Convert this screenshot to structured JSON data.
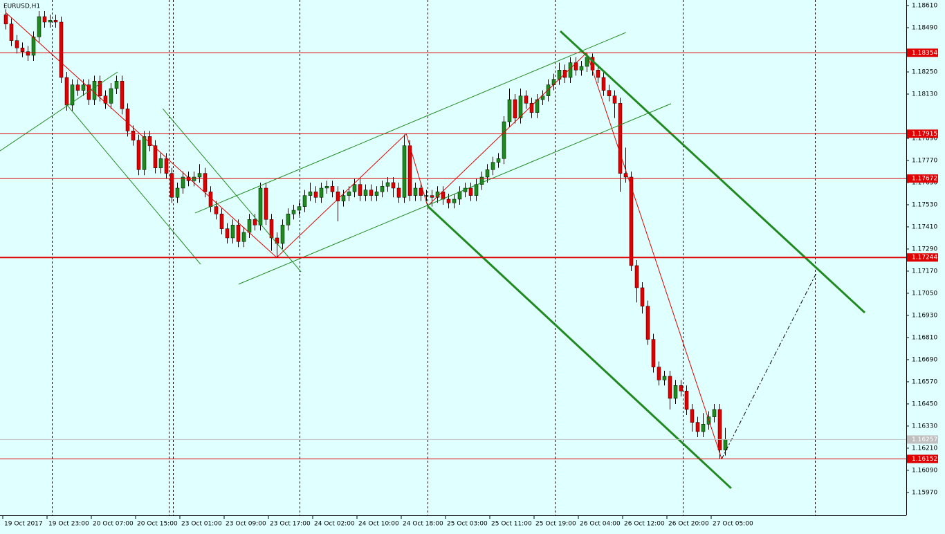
{
  "chart_data": {
    "type": "candlestick",
    "title": "EURUSD,H1",
    "xlim": [
      -1,
      162.75
    ],
    "ylim": [
      1.15846,
      1.1864
    ],
    "yticks": [
      {
        "value": 1.1861,
        "label": "1.18610"
      },
      {
        "value": 1.1849,
        "label": "1.18490"
      },
      {
        "value": 1.1825,
        "label": "1.18250"
      },
      {
        "value": 1.1813,
        "label": "1.18130"
      },
      {
        "value": 1.1789,
        "label": "1.17890"
      },
      {
        "value": 1.1777,
        "label": "1.17770"
      },
      {
        "value": 1.1765,
        "label": "1.17650"
      },
      {
        "value": 1.1753,
        "label": "1.17530"
      },
      {
        "value": 1.1741,
        "label": "1.17410"
      },
      {
        "value": 1.1729,
        "label": "1.17290"
      },
      {
        "value": 1.1717,
        "label": "1.17170"
      },
      {
        "value": 1.1705,
        "label": "1.17050"
      },
      {
        "value": 1.1693,
        "label": "1.16930"
      },
      {
        "value": 1.1681,
        "label": "1.16810"
      },
      {
        "value": 1.1669,
        "label": "1.16690"
      },
      {
        "value": 1.1657,
        "label": "1.16570"
      },
      {
        "value": 1.1645,
        "label": "1.16450"
      },
      {
        "value": 1.1633,
        "label": "1.16330"
      },
      {
        "value": 1.1621,
        "label": "1.16210"
      },
      {
        "value": 1.1609,
        "label": "1.16090"
      },
      {
        "value": 1.1597,
        "label": "1.15970"
      }
    ],
    "xticks": [
      {
        "value": 0,
        "label": "19 Oct 2017"
      },
      {
        "value": 8,
        "label": "19 Oct 23:00"
      },
      {
        "value": 16,
        "label": "20 Oct 07:00"
      },
      {
        "value": 24,
        "label": "20 Oct 15:00"
      },
      {
        "value": 32,
        "label": "23 Oct 01:00"
      },
      {
        "value": 40,
        "label": "23 Oct 09:00"
      },
      {
        "value": 48,
        "label": "23 Oct 17:00"
      },
      {
        "value": 56,
        "label": "24 Oct 02:00"
      },
      {
        "value": 64,
        "label": "24 Oct 10:00"
      },
      {
        "value": 72,
        "label": "24 Oct 18:00"
      },
      {
        "value": 80,
        "label": "25 Oct 03:00"
      },
      {
        "value": 88,
        "label": "25 Oct 11:00"
      },
      {
        "value": 96,
        "label": "25 Oct 19:00"
      },
      {
        "value": 104,
        "label": "26 Oct 04:00"
      },
      {
        "value": 112,
        "label": "26 Oct 12:00"
      },
      {
        "value": 120,
        "label": "26 Oct 20:00"
      },
      {
        "value": 128,
        "label": "27 Oct 05:00"
      }
    ],
    "up_color": "#1f8a1f",
    "down_color": "#e00000",
    "open": [
      1.1856,
      1.1851,
      1.1842,
      1.1838,
      1.1836,
      1.1834,
      1.1844,
      1.1855,
      1.1852,
      1.1853,
      1.1852,
      1.1822,
      1.1807,
      1.1818,
      1.1815,
      1.1818,
      1.181,
      1.182,
      1.1812,
      1.1808,
      1.1816,
      1.182,
      1.1805,
      1.1793,
      1.1788,
      1.1772,
      1.179,
      1.1785,
      1.1773,
      1.1778,
      1.177,
      1.1757,
      1.1762,
      1.1768,
      1.1766,
      1.1768,
      1.177,
      1.176,
      1.1752,
      1.1748,
      1.174,
      1.1735,
      1.1742,
      1.1733,
      1.1738,
      1.1745,
      1.1742,
      1.1762,
      1.1745,
      1.1735,
      1.1732,
      1.1742,
      1.1748,
      1.175,
      1.1752,
      1.1758,
      1.176,
      1.1757,
      1.1762,
      1.1763,
      1.176,
      1.1755,
      1.1758,
      1.176,
      1.1764,
      1.1758,
      1.1761,
      1.1758,
      1.176,
      1.1763,
      1.1765,
      1.1762,
      1.1757,
      1.1785,
      1.1758,
      1.1762,
      1.1758,
      1.1758,
      1.1757,
      1.176,
      1.1756,
      1.1754,
      1.1756,
      1.176,
      1.1762,
      1.1758,
      1.1764,
      1.1768,
      1.1772,
      1.1776,
      1.1778,
      1.1798,
      1.181,
      1.18,
      1.1812,
      1.1808,
      1.1803,
      1.181,
      1.1812,
      1.1818,
      1.1821,
      1.1826,
      1.1822,
      1.183,
      1.1826,
      1.1828,
      1.1833,
      1.1826,
      1.1822,
      1.1815,
      1.1812,
      1.1808,
      1.177,
      1.1768,
      1.172,
      1.1708,
      1.1698,
      1.168,
      1.1665,
      1.1658,
      1.166,
      1.1648,
      1.1655,
      1.1652,
      1.1642,
      1.1635,
      1.163,
      1.1634,
      1.1638,
      1.1642,
      1.162
    ],
    "high": [
      1.1859,
      1.1854,
      1.1845,
      1.1841,
      1.1839,
      1.1847,
      1.1858,
      1.1858,
      1.1856,
      1.1856,
      1.1855,
      1.1825,
      1.1821,
      1.1821,
      1.1821,
      1.1821,
      1.1823,
      1.1823,
      1.1815,
      1.1819,
      1.1823,
      1.1823,
      1.1808,
      1.1796,
      1.1791,
      1.1793,
      1.1793,
      1.1788,
      1.1781,
      1.1781,
      1.1773,
      1.1765,
      1.1771,
      1.1771,
      1.1771,
      1.1775,
      1.1773,
      1.1763,
      1.1755,
      1.1751,
      1.1743,
      1.1745,
      1.1745,
      1.1741,
      1.1748,
      1.1748,
      1.1765,
      1.1765,
      1.1748,
      1.1738,
      1.1745,
      1.1751,
      1.1753,
      1.1755,
      1.1761,
      1.1765,
      1.1763,
      1.1765,
      1.1766,
      1.1766,
      1.1763,
      1.1761,
      1.1763,
      1.1767,
      1.1767,
      1.1764,
      1.1764,
      1.1763,
      1.1766,
      1.1768,
      1.1768,
      1.1765,
      1.1791,
      1.1788,
      1.1765,
      1.1765,
      1.1761,
      1.1761,
      1.1763,
      1.1763,
      1.1759,
      1.1759,
      1.1763,
      1.1765,
      1.1765,
      1.1767,
      1.1771,
      1.1775,
      1.1779,
      1.1781,
      1.1801,
      1.1816,
      1.1813,
      1.1816,
      1.1815,
      1.1811,
      1.1813,
      1.1815,
      1.1821,
      1.1824,
      1.183,
      1.1829,
      1.1833,
      1.1833,
      1.1831,
      1.18354,
      1.1835,
      1.1829,
      1.1825,
      1.1818,
      1.1815,
      1.1811,
      1.1784,
      1.1771,
      1.1723,
      1.1711,
      1.1701,
      1.1683,
      1.1668,
      1.1663,
      1.1663,
      1.1658,
      1.1658,
      1.1655,
      1.1645,
      1.1638,
      1.164,
      1.1641,
      1.1645,
      1.1645,
      1.1632
    ],
    "low": [
      1.1848,
      1.1839,
      1.1835,
      1.1833,
      1.1831,
      1.1831,
      1.1841,
      1.1849,
      1.1849,
      1.1849,
      1.1819,
      1.1804,
      1.1804,
      1.1812,
      1.1812,
      1.1807,
      1.1807,
      1.1809,
      1.1805,
      1.1805,
      1.1813,
      1.1802,
      1.179,
      1.1785,
      1.1769,
      1.1769,
      1.1782,
      1.177,
      1.177,
      1.1767,
      1.1754,
      1.1754,
      1.1759,
      1.1763,
      1.1763,
      1.1765,
      1.1757,
      1.1749,
      1.1745,
      1.1737,
      1.1732,
      1.1732,
      1.173,
      1.173,
      1.1735,
      1.1739,
      1.1739,
      1.1742,
      1.1728,
      1.17244,
      1.1729,
      1.1739,
      1.1745,
      1.1747,
      1.1749,
      1.1755,
      1.1754,
      1.1754,
      1.1759,
      1.1757,
      1.1744,
      1.1752,
      1.1755,
      1.1757,
      1.1755,
      1.1755,
      1.1755,
      1.1755,
      1.1757,
      1.176,
      1.1757,
      1.1754,
      1.1754,
      1.1755,
      1.1755,
      1.1755,
      1.1755,
      1.1752,
      1.1754,
      1.1753,
      1.1751,
      1.1751,
      1.1753,
      1.1757,
      1.1755,
      1.1755,
      1.1761,
      1.1765,
      1.1769,
      1.1773,
      1.1775,
      1.1795,
      1.1797,
      1.1797,
      1.1805,
      1.18,
      1.18,
      1.1807,
      1.1809,
      1.1815,
      1.1818,
      1.1819,
      1.1819,
      1.1823,
      1.1823,
      1.1825,
      1.1823,
      1.1819,
      1.1812,
      1.1809,
      1.18,
      1.176,
      1.1765,
      1.1717,
      1.17,
      1.1694,
      1.1677,
      1.1662,
      1.1655,
      1.1655,
      1.1642,
      1.1645,
      1.1649,
      1.1639,
      1.163,
      1.1627,
      1.1627,
      1.1631,
      1.1635,
      1.16152,
      1.1617
    ],
    "close": [
      1.1851,
      1.1842,
      1.1838,
      1.1836,
      1.1834,
      1.1844,
      1.1855,
      1.1852,
      1.1853,
      1.1852,
      1.1822,
      1.1807,
      1.1818,
      1.1815,
      1.1818,
      1.181,
      1.182,
      1.1812,
      1.1808,
      1.1816,
      1.182,
      1.1805,
      1.1793,
      1.1788,
      1.1772,
      1.179,
      1.1785,
      1.1773,
      1.1778,
      1.177,
      1.1757,
      1.1762,
      1.1768,
      1.1766,
      1.1768,
      1.177,
      1.176,
      1.1752,
      1.1748,
      1.174,
      1.1735,
      1.1742,
      1.1733,
      1.1738,
      1.1745,
      1.1742,
      1.1762,
      1.1745,
      1.1735,
      1.1732,
      1.1742,
      1.1748,
      1.175,
      1.1752,
      1.1758,
      1.176,
      1.1757,
      1.1762,
      1.1763,
      1.176,
      1.1755,
      1.1758,
      1.176,
      1.1764,
      1.1758,
      1.1761,
      1.1758,
      1.176,
      1.1763,
      1.1765,
      1.1762,
      1.1757,
      1.1785,
      1.1758,
      1.1762,
      1.1758,
      1.1758,
      1.1757,
      1.176,
      1.1756,
      1.1754,
      1.1756,
      1.176,
      1.1762,
      1.1758,
      1.1764,
      1.1768,
      1.1772,
      1.1776,
      1.1778,
      1.1798,
      1.181,
      1.18,
      1.1812,
      1.1808,
      1.1803,
      1.181,
      1.1812,
      1.1818,
      1.1821,
      1.1826,
      1.1822,
      1.183,
      1.1826,
      1.1828,
      1.1833,
      1.1826,
      1.1822,
      1.1815,
      1.1812,
      1.1808,
      1.177,
      1.1768,
      1.172,
      1.1708,
      1.1698,
      1.168,
      1.1665,
      1.1658,
      1.166,
      1.1648,
      1.1655,
      1.1652,
      1.1642,
      1.1635,
      1.163,
      1.1634,
      1.1638,
      1.1642,
      1.162,
      1.16257
    ],
    "levels": [
      {
        "value": 1.18354,
        "color": "#e00000",
        "width": 1
      },
      {
        "value": 1.17915,
        "color": "#e00000",
        "width": 1
      },
      {
        "value": 1.17672,
        "color": "#e00000",
        "width": 1
      },
      {
        "value": 1.17244,
        "color": "#e00000",
        "width": 2
      },
      {
        "value": 1.16152,
        "color": "#e00000",
        "width": 1
      }
    ],
    "bid": 1.16257,
    "bid_color": "#c0c0c0",
    "lines": [
      {
        "color": "#e00000",
        "width": 1,
        "dashed": false,
        "x": [
          0,
          49,
          72.4,
          76.25,
          105,
          129.4
        ],
        "y": [
          1.18573,
          1.17244,
          1.17915,
          1.17523,
          1.18354,
          1.16152
        ]
      },
      {
        "color": "#000000",
        "width": 1,
        "dashed": true,
        "x": [
          129.4,
          146.5
        ],
        "y": [
          1.16152,
          1.17159
        ]
      },
      {
        "color": "#1f8a1f",
        "width": 1,
        "dashed": false,
        "x": [
          -1,
          20.25
        ],
        "y": [
          1.17822,
          1.1825
        ]
      },
      {
        "color": "#1f8a1f",
        "width": 1,
        "dashed": false,
        "x": [
          10.9,
          35.25
        ],
        "y": [
          1.18078,
          1.17207
        ]
      },
      {
        "color": "#1f8a1f",
        "width": 1,
        "dashed": false,
        "x": [
          28.4,
          53.4
        ],
        "y": [
          1.18051,
          1.17166
        ]
      },
      {
        "color": "#1f8a1f",
        "width": 1,
        "dashed": false,
        "x": [
          34.25,
          112.1
        ],
        "y": [
          1.17485,
          1.18464
        ]
      },
      {
        "color": "#1f8a1f",
        "width": 1,
        "dashed": false,
        "x": [
          42.1,
          120.25
        ],
        "y": [
          1.17099,
          1.18078
        ]
      },
      {
        "color": "#1f8a1f",
        "width": 3,
        "dashed": false,
        "x": [
          100.25,
          155.25
        ],
        "y": [
          1.18471,
          1.16945
        ]
      },
      {
        "color": "#1f8a1f",
        "width": 3,
        "dashed": false,
        "x": [
          76.25,
          131.1
        ],
        "y": [
          1.17523,
          1.15993
        ]
      }
    ]
  }
}
